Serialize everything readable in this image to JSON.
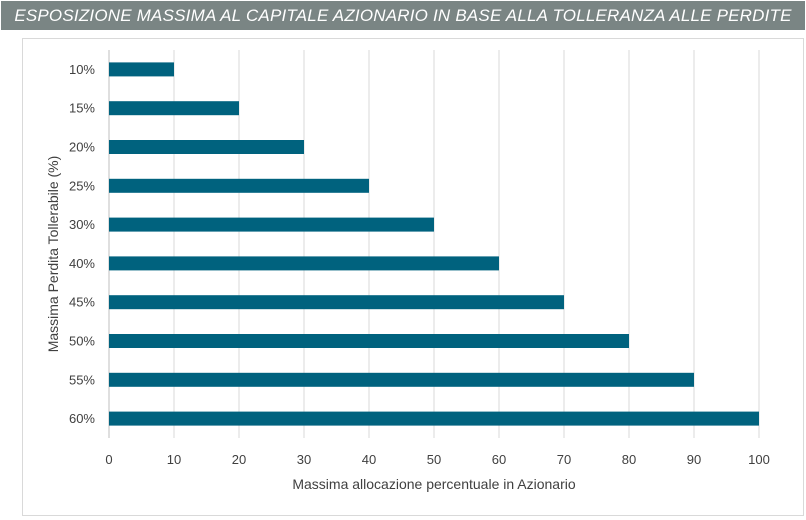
{
  "chart_data": {
    "type": "bar",
    "orientation": "horizontal",
    "title": "ESPOSIZIONE MASSIMA AL CAPITALE AZIONARIO IN BASE ALLA TOLLERANZA ALLE PERDITE",
    "categories": [
      "10%",
      "15%",
      "20%",
      "25%",
      "30%",
      "40%",
      "45%",
      "50%",
      "55%",
      "60%"
    ],
    "values": [
      10,
      20,
      30,
      40,
      50,
      60,
      70,
      80,
      90,
      100
    ],
    "xlabel": "Massima allocazione percentuale in Azionario",
    "ylabel": "Massima Perdita Tollerabile (%)",
    "xlim": [
      0,
      100
    ],
    "xticks": [
      "0",
      "10",
      "20",
      "30",
      "40",
      "50",
      "60",
      "70",
      "80",
      "90",
      "100"
    ],
    "grid": "vertical",
    "legend": "none",
    "colors": {
      "bar": "#00627e",
      "title_background": "#7a8584",
      "title_text": "#ffffff",
      "grid": "#d9d9d9",
      "text": "#404040"
    }
  }
}
